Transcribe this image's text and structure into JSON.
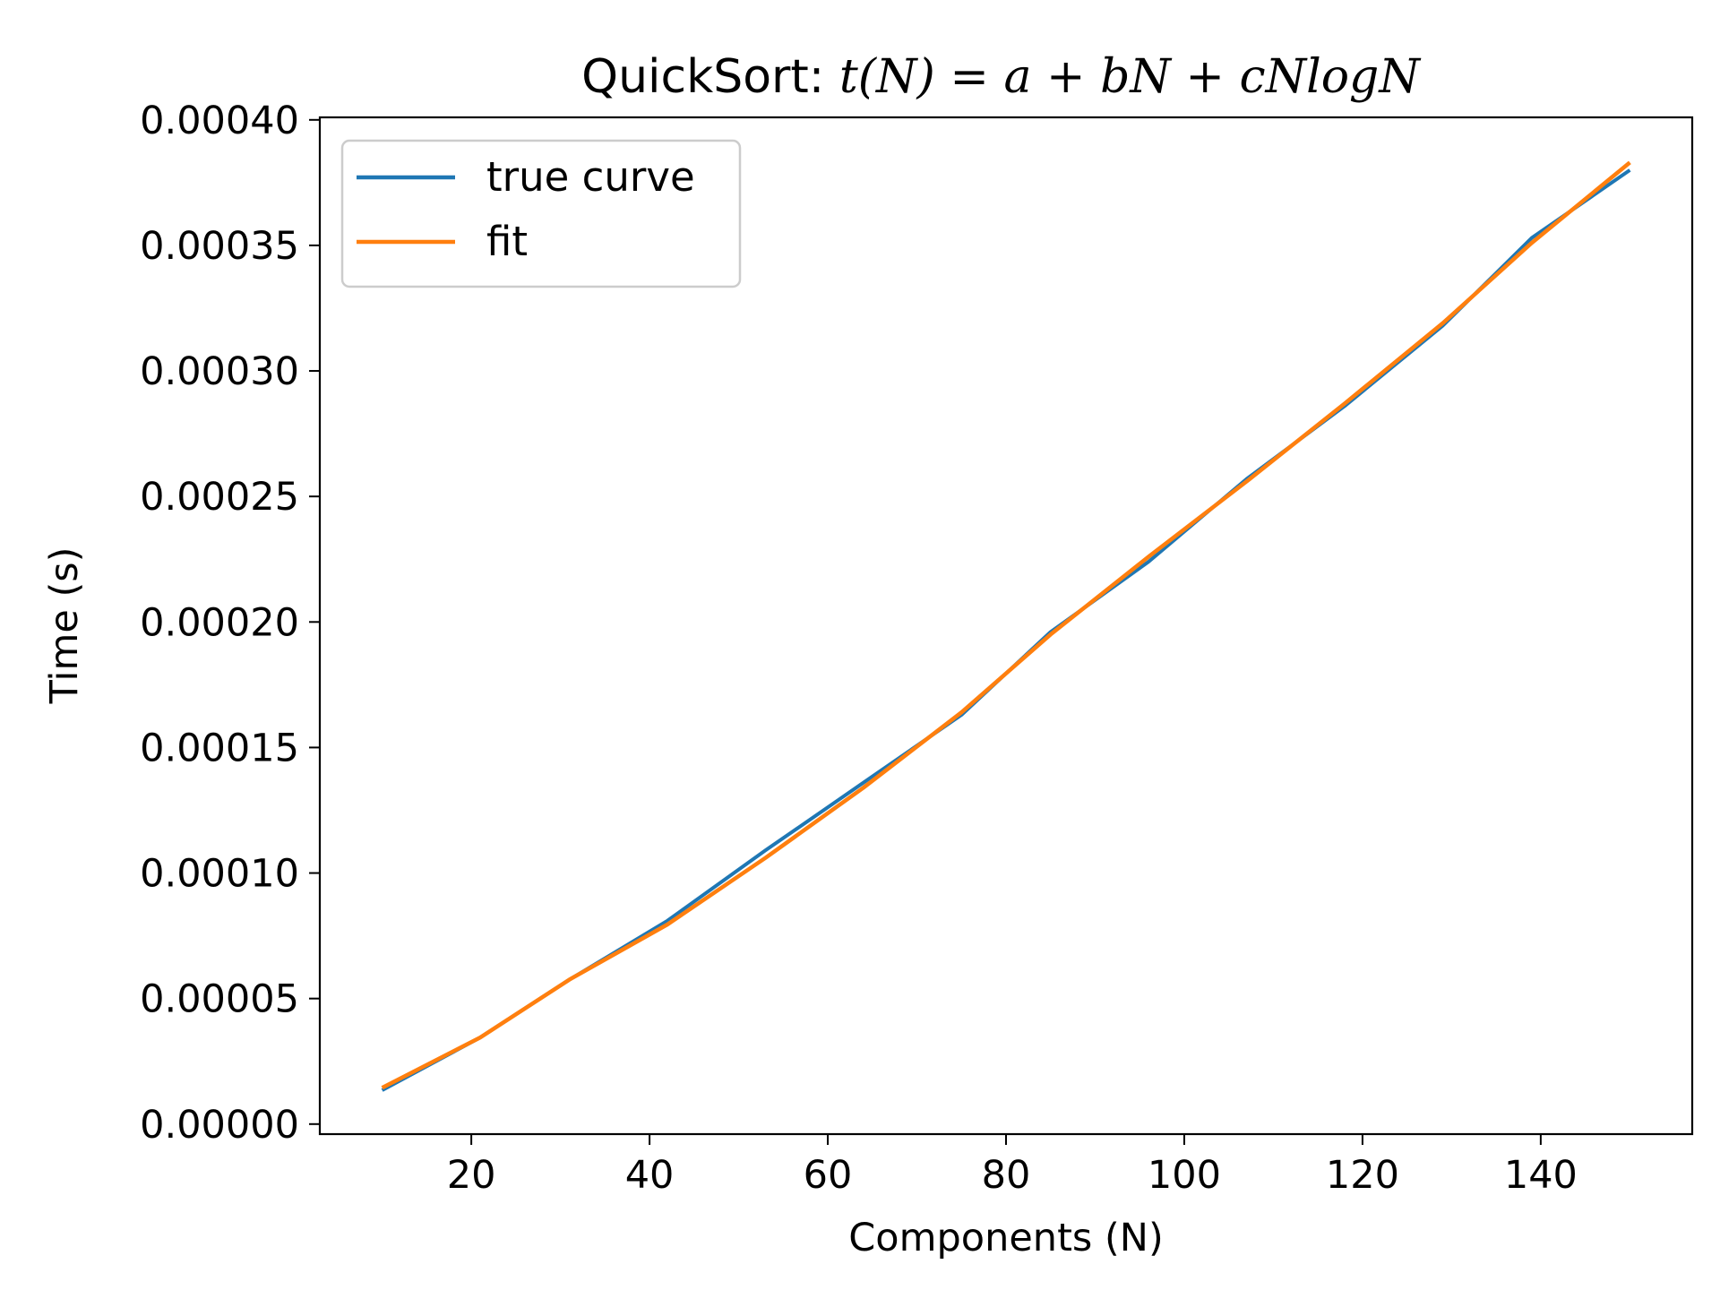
{
  "chart_data": {
    "type": "line",
    "title": {
      "prefix": "QuickSort: ",
      "formula": "t(N) = a + bN + cNlogN"
    },
    "xlabel": "Components (N)",
    "ylabel": "Time (s)",
    "xlim": [
      3,
      157
    ],
    "ylim": [
      -4e-06,
      0.000401
    ],
    "xticks": [
      20,
      40,
      60,
      80,
      100,
      120,
      140
    ],
    "xtick_labels": [
      "20",
      "40",
      "60",
      "80",
      "100",
      "120",
      "140"
    ],
    "yticks": [
      0,
      5e-05,
      0.0001,
      0.00015,
      0.0002,
      0.00025,
      0.0003,
      0.00035,
      0.0004
    ],
    "ytick_labels": [
      "0.00000",
      "0.00005",
      "0.00010",
      "0.00015",
      "0.00020",
      "0.00025",
      "0.00030",
      "0.00035",
      "0.00040"
    ],
    "grid": false,
    "legend_position": "upper-left",
    "x": [
      10,
      21,
      31,
      42,
      53,
      64,
      75,
      85,
      96,
      107,
      118,
      129,
      139,
      150
    ],
    "series": [
      {
        "name": "true curve",
        "color": "#1f77b4",
        "values": [
          1.35e-05,
          3.45e-05,
          5.75e-05,
          8.1e-05,
          0.000109,
          0.000136,
          0.000163,
          0.000196,
          0.000224,
          0.000257,
          0.000286,
          0.000318,
          0.000353,
          0.00038
        ]
      },
      {
        "name": "fit",
        "color": "#ff7f0e",
        "values": [
          1.45e-05,
          3.45e-05,
          5.75e-05,
          7.95e-05,
          0.000106,
          0.000134,
          0.000164,
          0.000195,
          0.000226,
          0.000256,
          0.000287,
          0.000319,
          0.000351,
          0.000383
        ]
      }
    ]
  }
}
